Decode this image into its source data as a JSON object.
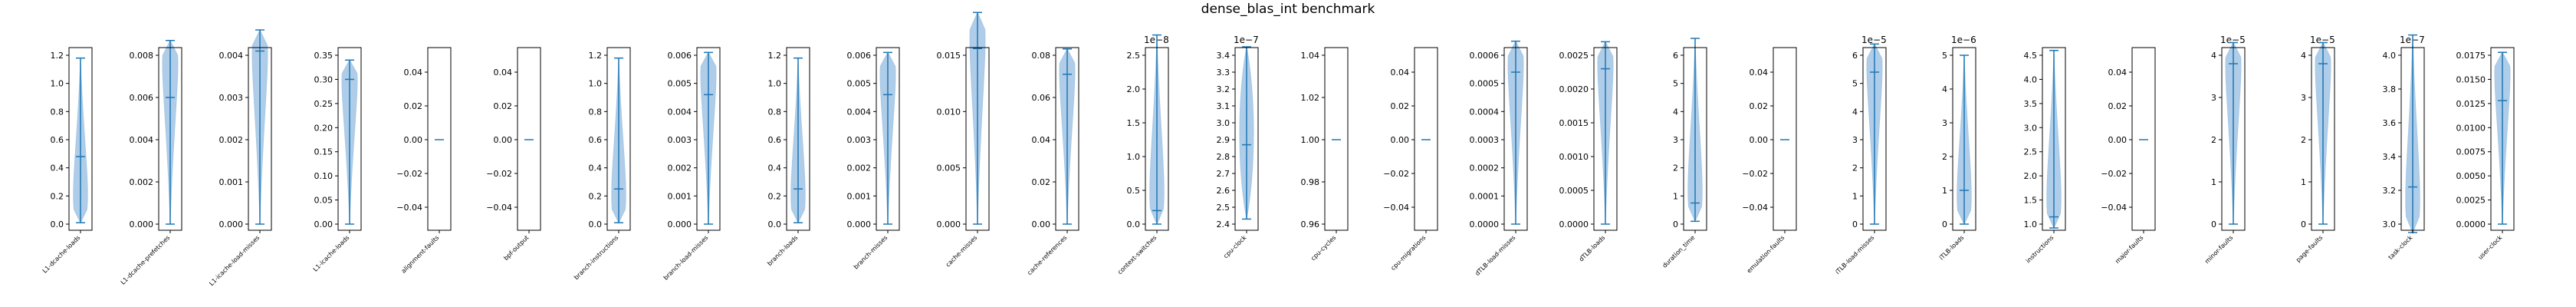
{
  "title": "dense_blas_int benchmark",
  "colors": {
    "body": "#1f77b4",
    "fill": "#a6c8e6",
    "frame": "#000000"
  },
  "chart_data": [
    {
      "type": "violin",
      "xlabel": "L1-dcache-loads",
      "ylim": [
        0,
        1.2
      ],
      "ticks": [
        "0.0",
        "0.2",
        "0.4",
        "0.6",
        "0.8",
        "1.0",
        "1.2"
      ],
      "min": 0.01,
      "max": 1.18,
      "median": 0.48,
      "shape": "bottom"
    },
    {
      "type": "violin",
      "xlabel": "L1-dcache-prefetches",
      "ylim": [
        0,
        0.008
      ],
      "ticks": [
        "0.000",
        "0.002",
        "0.004",
        "0.006",
        "0.008"
      ],
      "min": 0.0,
      "max": 0.0087,
      "median": 0.006,
      "shape": "top"
    },
    {
      "type": "violin",
      "xlabel": "L1-icache-load-misses",
      "ylim": [
        0,
        0.004
      ],
      "ticks": [
        "0.000",
        "0.001",
        "0.002",
        "0.003",
        "0.004"
      ],
      "min": 0.0,
      "max": 0.0046,
      "median": 0.0041,
      "shape": "top"
    },
    {
      "type": "violin",
      "xlabel": "L1-icache-loads",
      "ylim": [
        0,
        0.35
      ],
      "ticks": [
        "0.00",
        "0.05",
        "0.10",
        "0.15",
        "0.20",
        "0.25",
        "0.30",
        "0.35"
      ],
      "min": 0.0,
      "max": 0.34,
      "median": 0.3,
      "shape": "top"
    },
    {
      "type": "violin",
      "xlabel": "alignment-faults",
      "ylim": [
        -0.05,
        0.05
      ],
      "ticks": [
        "−0.04",
        "−0.02",
        "0.00",
        "0.02",
        "0.04"
      ],
      "min": 0,
      "max": 0,
      "median": 0,
      "shape": "flat"
    },
    {
      "type": "violin",
      "xlabel": "bpf-output",
      "ylim": [
        -0.05,
        0.05
      ],
      "ticks": [
        "−0.04",
        "−0.02",
        "0.00",
        "0.02",
        "0.04"
      ],
      "min": 0,
      "max": 0,
      "median": 0,
      "shape": "flat"
    },
    {
      "type": "violin",
      "xlabel": "branch-instructions",
      "ylim": [
        0,
        1.2
      ],
      "ticks": [
        "0.0",
        "0.2",
        "0.4",
        "0.6",
        "0.8",
        "1.0",
        "1.2"
      ],
      "min": 0.01,
      "max": 1.18,
      "median": 0.25,
      "shape": "bottom"
    },
    {
      "type": "violin",
      "xlabel": "branch-load-misses",
      "ylim": [
        0,
        0.006
      ],
      "ticks": [
        "0.000",
        "0.001",
        "0.002",
        "0.003",
        "0.004",
        "0.005",
        "0.006"
      ],
      "min": 0.0,
      "max": 0.0061,
      "median": 0.0046,
      "shape": "top"
    },
    {
      "type": "violin",
      "xlabel": "branch-loads",
      "ylim": [
        0,
        1.2
      ],
      "ticks": [
        "0.0",
        "0.2",
        "0.4",
        "0.6",
        "0.8",
        "1.0",
        "1.2"
      ],
      "min": 0.01,
      "max": 1.18,
      "median": 0.25,
      "shape": "bottom"
    },
    {
      "type": "violin",
      "xlabel": "branch-misses",
      "ylim": [
        0,
        0.006
      ],
      "ticks": [
        "0.000",
        "0.001",
        "0.002",
        "0.003",
        "0.004",
        "0.005",
        "0.006"
      ],
      "min": 0.0,
      "max": 0.0061,
      "median": 0.0046,
      "shape": "top"
    },
    {
      "type": "violin",
      "xlabel": "cache-misses",
      "ylim": [
        0,
        0.015
      ],
      "ticks": [
        "0.000",
        "0.005",
        "0.010",
        "0.015"
      ],
      "min": 0.0,
      "max": 0.0188,
      "median": 0.0156,
      "shape": "top"
    },
    {
      "type": "violin",
      "xlabel": "cache-references",
      "ylim": [
        0,
        0.08
      ],
      "ticks": [
        "0.00",
        "0.02",
        "0.04",
        "0.06",
        "0.08"
      ],
      "min": 0.0,
      "max": 0.083,
      "median": 0.071,
      "shape": "top"
    },
    {
      "type": "violin",
      "xlabel": "context-switches",
      "ylim": [
        0,
        2.5e-08
      ],
      "ticks": [
        "0.0",
        "0.5",
        "1.0",
        "1.5",
        "2.0",
        "2.5"
      ],
      "offset": "1e−8",
      "min": 0.0,
      "max": 2.8e-08,
      "median": 2e-09,
      "shape": "bottom"
    },
    {
      "type": "violin",
      "xlabel": "cpu-clock",
      "ylim": [
        2.4e-07,
        3.4e-07
      ],
      "ticks": [
        "2.4",
        "2.5",
        "2.6",
        "2.7",
        "2.8",
        "2.9",
        "3.0",
        "3.1",
        "3.2",
        "3.3",
        "3.4"
      ],
      "offset": "1e−7",
      "min": 2.43e-07,
      "max": 3.45e-07,
      "median": 2.87e-07,
      "shape": "middle"
    },
    {
      "type": "violin",
      "xlabel": "cpu-cycles",
      "ylim": [
        0.96,
        1.04
      ],
      "ticks": [
        "0.96",
        "0.98",
        "1.00",
        "1.02",
        "1.04"
      ],
      "min": 1.0,
      "max": 1.0,
      "median": 1.0,
      "shape": "flat"
    },
    {
      "type": "violin",
      "xlabel": "cpu-migrations",
      "ylim": [
        -0.05,
        0.05
      ],
      "ticks": [
        "−0.04",
        "−0.02",
        "0.00",
        "0.02",
        "0.04"
      ],
      "min": 0,
      "max": 0,
      "median": 0,
      "shape": "flat"
    },
    {
      "type": "violin",
      "xlabel": "dTLB-load-misses",
      "ylim": [
        0,
        0.0006
      ],
      "ticks": [
        "0.0000",
        "0.0001",
        "0.0002",
        "0.0003",
        "0.0004",
        "0.0005",
        "0.0006"
      ],
      "min": 0.0,
      "max": 0.00065,
      "median": 0.00054,
      "shape": "top"
    },
    {
      "type": "violin",
      "xlabel": "dTLB-loads",
      "ylim": [
        0,
        0.0025
      ],
      "ticks": [
        "0.0000",
        "0.0005",
        "0.0010",
        "0.0015",
        "0.0020",
        "0.0025"
      ],
      "min": 0.0,
      "max": 0.0027,
      "median": 0.0023,
      "shape": "top"
    },
    {
      "type": "violin",
      "xlabel": "duration_time",
      "ylim": [
        0,
        6
      ],
      "ticks": [
        "0",
        "1",
        "2",
        "3",
        "4",
        "5",
        "6"
      ],
      "min": 0.1,
      "max": 6.6,
      "median": 0.75,
      "shape": "bottom"
    },
    {
      "type": "violin",
      "xlabel": "emulation-faults",
      "ylim": [
        -0.05,
        0.05
      ],
      "ticks": [
        "−0.04",
        "−0.02",
        "0.00",
        "0.02",
        "0.04"
      ],
      "min": 0,
      "max": 0,
      "median": 0,
      "shape": "flat"
    },
    {
      "type": "violin",
      "xlabel": "iTLB-load-misses",
      "ylim": [
        0,
        6e-05
      ],
      "ticks": [
        "0",
        "1",
        "2",
        "3",
        "4",
        "5",
        "6"
      ],
      "offset": "1e−5",
      "min": 0.0,
      "max": 6.4e-05,
      "median": 5.4e-05,
      "shape": "top"
    },
    {
      "type": "violin",
      "xlabel": "iTLB-loads",
      "ylim": [
        0,
        5e-06
      ],
      "ticks": [
        "0",
        "1",
        "2",
        "3",
        "4",
        "5"
      ],
      "offset": "1e−6",
      "min": 0.0,
      "max": 5e-06,
      "median": 1e-06,
      "shape": "bottom"
    },
    {
      "type": "violin",
      "xlabel": "instructions",
      "ylim": [
        1.0,
        4.5
      ],
      "ticks": [
        "1.0",
        "1.5",
        "2.0",
        "2.5",
        "3.0",
        "3.5",
        "4.0",
        "4.5"
      ],
      "min": 0.92,
      "max": 4.6,
      "median": 1.15,
      "shape": "bottom"
    },
    {
      "type": "violin",
      "xlabel": "major-faults",
      "ylim": [
        -0.05,
        0.05
      ],
      "ticks": [
        "−0.04",
        "−0.02",
        "0.00",
        "0.02",
        "0.04"
      ],
      "min": 0,
      "max": 0,
      "median": 0,
      "shape": "flat"
    },
    {
      "type": "violin",
      "xlabel": "minor-faults",
      "ylim": [
        0,
        4e-05
      ],
      "ticks": [
        "0",
        "1",
        "2",
        "3",
        "4"
      ],
      "offset": "1e−5",
      "min": 0.0,
      "max": 4.3e-05,
      "median": 3.8e-05,
      "shape": "top"
    },
    {
      "type": "violin",
      "xlabel": "page-faults",
      "ylim": [
        0,
        4e-05
      ],
      "ticks": [
        "0",
        "1",
        "2",
        "3",
        "4"
      ],
      "offset": "1e−5",
      "min": 0.0,
      "max": 4.3e-05,
      "median": 3.8e-05,
      "shape": "top"
    },
    {
      "type": "violin",
      "xlabel": "task-clock",
      "ylim": [
        3e-07,
        4e-07
      ],
      "ticks": [
        "3.0",
        "3.2",
        "3.4",
        "3.6",
        "3.8",
        "4.0"
      ],
      "offset": "1e−7",
      "min": 2.95e-07,
      "max": 4.12e-07,
      "median": 3.22e-07,
      "shape": "bottom"
    },
    {
      "type": "violin",
      "xlabel": "user-clock",
      "ylim": [
        0,
        0.0175
      ],
      "ticks": [
        "0.0000",
        "0.0025",
        "0.0050",
        "0.0075",
        "0.0100",
        "0.0125",
        "0.0150",
        "0.0175"
      ],
      "min": 0.0,
      "max": 0.0178,
      "median": 0.0128,
      "shape": "top"
    }
  ]
}
